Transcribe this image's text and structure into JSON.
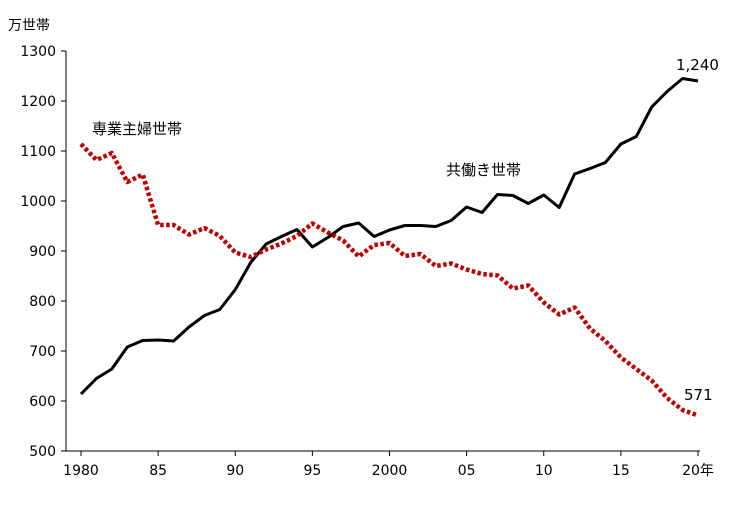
{
  "chart_data": {
    "type": "line",
    "title": "",
    "y_unit_label": "万世帯",
    "x_unit_suffix": "年",
    "xlim": [
      1980,
      2020
    ],
    "ylim": [
      500,
      1300
    ],
    "y_ticks": [
      500,
      600,
      700,
      800,
      900,
      1000,
      1100,
      1200,
      1300
    ],
    "x_ticks": [
      {
        "value": 1980,
        "label": "1980"
      },
      {
        "value": 1985,
        "label": "85"
      },
      {
        "value": 1990,
        "label": "90"
      },
      {
        "value": 1995,
        "label": "95"
      },
      {
        "value": 2000,
        "label": "2000"
      },
      {
        "value": 2005,
        "label": "05"
      },
      {
        "value": 2010,
        "label": "10"
      },
      {
        "value": 2015,
        "label": "15"
      },
      {
        "value": 2020,
        "label": "20年"
      }
    ],
    "grid": false,
    "legend": "none",
    "x": [
      1980,
      1981,
      1982,
      1983,
      1984,
      1985,
      1986,
      1987,
      1988,
      1989,
      1990,
      1991,
      1992,
      1993,
      1994,
      1995,
      1996,
      1997,
      1998,
      1999,
      2000,
      2001,
      2002,
      2003,
      2004,
      2005,
      2006,
      2007,
      2008,
      2009,
      2010,
      2011,
      2012,
      2013,
      2014,
      2015,
      2016,
      2017,
      2018,
      2019,
      2020
    ],
    "series": [
      {
        "name": "共働き世帯",
        "color": "#000000",
        "style": "solid",
        "values": [
          614,
          645,
          664,
          708,
          721,
          722,
          720,
          748,
          771,
          783,
          823,
          877,
          914,
          929,
          943,
          908,
          927,
          949,
          956,
          929,
          942,
          951,
          951,
          949,
          961,
          988,
          977,
          1013,
          1011,
          995,
          1012,
          987,
          1054,
          1065,
          1077,
          1114,
          1129,
          1188,
          1219,
          1245,
          1240
        ]
      },
      {
        "name": "専業主婦世帯",
        "color": "#c00000",
        "style": "dotted",
        "values": [
          1114,
          1082,
          1096,
          1038,
          1053,
          952,
          952,
          933,
          946,
          930,
          897,
          888,
          903,
          915,
          930,
          955,
          937,
          921,
          889,
          912,
          916,
          890,
          894,
          870,
          875,
          863,
          854,
          851,
          825,
          831,
          797,
          773,
          787,
          745,
          720,
          687,
          664,
          641,
          606,
          582,
          571
        ]
      }
    ],
    "annotations": [
      {
        "text": "1,240",
        "series": "共働き世帯"
      },
      {
        "text": "571",
        "series": "専業主婦世帯"
      },
      {
        "text": "専業主婦世帯",
        "series": "専業主婦世帯"
      },
      {
        "text": "共働き世帯",
        "series": "共働き世帯"
      }
    ]
  }
}
